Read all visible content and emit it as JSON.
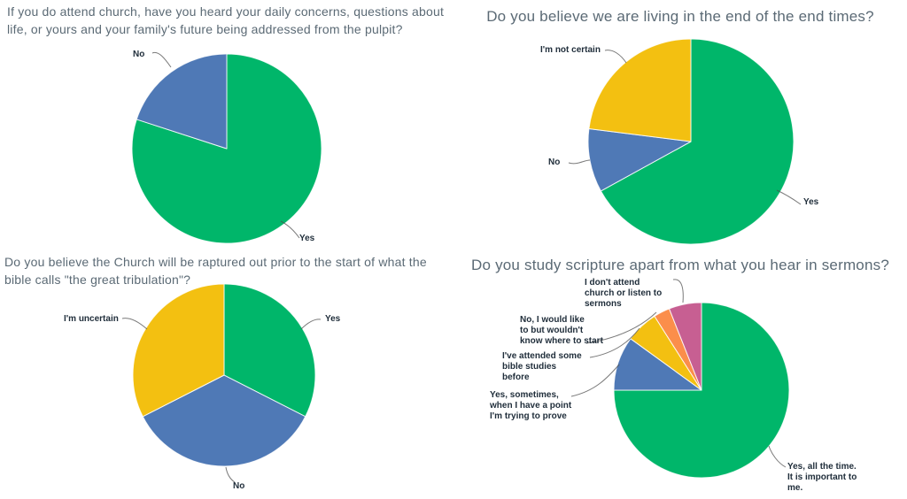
{
  "page": {
    "background": "#ffffff",
    "title_text_color": "#5b6a75",
    "label_text_color": "#1f2d3a",
    "leader_line_color": "#4d4d4d"
  },
  "chart_data": [
    {
      "type": "pie",
      "title": "If you do attend church, have you heard your daily concerns, questions about\nlife, or yours and your family's future being addressed from the pulpit?",
      "labels": [
        "Yes",
        "No"
      ],
      "values_percent": [
        80,
        20
      ],
      "colors": [
        "#00b66a",
        "#4f79b6"
      ],
      "start_angle_deg": 0,
      "direction": "clockwise",
      "legend_position": "callout-labels"
    },
    {
      "type": "pie",
      "title": "Do you believe we are living in the end of the end times?",
      "labels": [
        "Yes",
        "No",
        "I'm not certain"
      ],
      "values_percent": [
        67,
        10,
        23
      ],
      "colors": [
        "#00b66a",
        "#4f79b6",
        "#f3c011"
      ],
      "start_angle_deg": 0,
      "direction": "clockwise",
      "legend_position": "callout-labels"
    },
    {
      "type": "pie",
      "title": "Do you believe the Church will be raptured out prior to the start of what the\nbible calls \"the great tribulation\"?",
      "labels": [
        "Yes",
        "No",
        "I'm uncertain"
      ],
      "values_percent": [
        32.5,
        35,
        32.5
      ],
      "colors": [
        "#00b66a",
        "#4f79b6",
        "#f3c011"
      ],
      "start_angle_deg": 0,
      "direction": "clockwise",
      "legend_position": "callout-labels"
    },
    {
      "type": "pie",
      "title": "Do you study scripture apart from what you hear in sermons?",
      "labels": [
        "Yes, all the time.\nIt is important to\nme.",
        "Yes, sometimes,\nwhen I have a point\nI'm trying to prove",
        "I've attended some\nbible studies\nbefore",
        "No, I would like\nto but wouldn't\nknow where to start",
        "I don't attend\nchurch or listen to\nsermons"
      ],
      "values_percent": [
        75,
        10,
        6,
        3,
        6
      ],
      "colors": [
        "#00b66a",
        "#4f79b6",
        "#f3c011",
        "#fb8e4b",
        "#c75f92"
      ],
      "start_angle_deg": 0,
      "direction": "clockwise",
      "legend_position": "callout-labels"
    }
  ]
}
